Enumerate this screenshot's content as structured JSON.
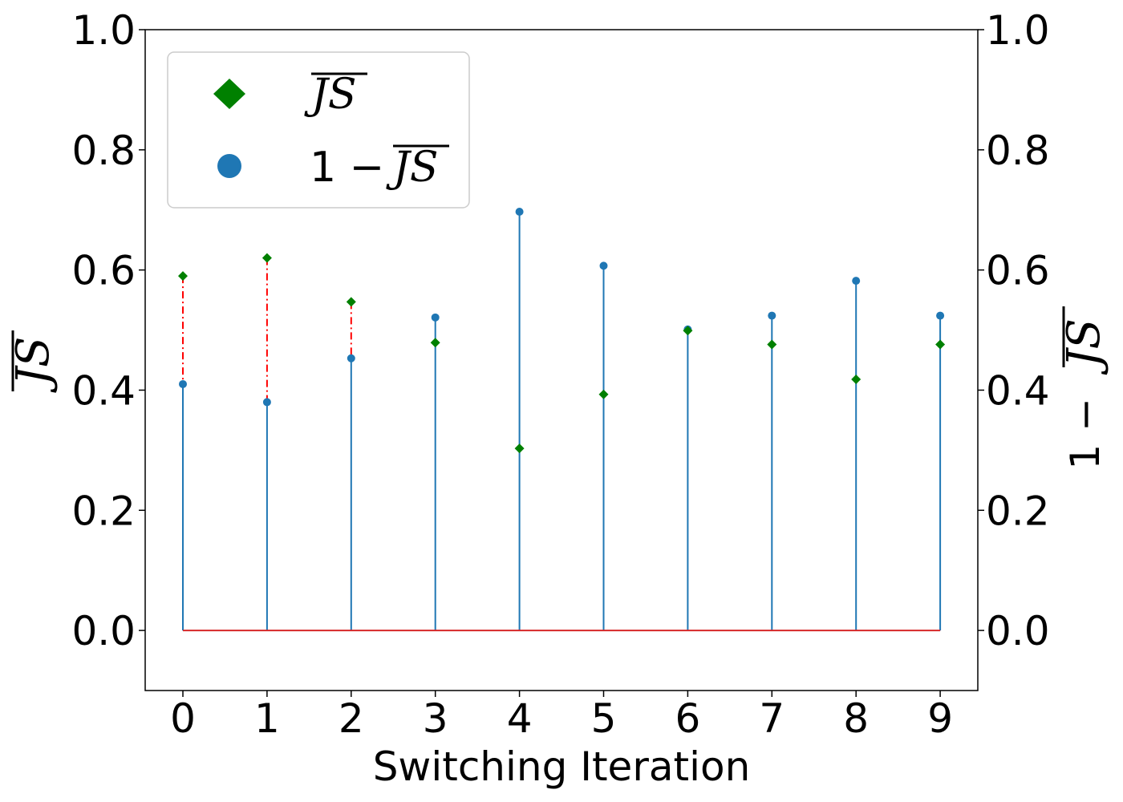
{
  "chart_data": {
    "type": "stem",
    "xlabel": "Switching Iteration",
    "ylabel_left": "JS",
    "ylabel_right_prefix": "1 −",
    "ylabel_right_symbol": "JS",
    "x": [
      0,
      1,
      2,
      3,
      4,
      5,
      6,
      7,
      8,
      9
    ],
    "xticks": [
      "0",
      "1",
      "2",
      "3",
      "4",
      "5",
      "6",
      "7",
      "8",
      "9"
    ],
    "ylim": [
      -0.1,
      1.0
    ],
    "yticks": [
      "0.0",
      "0.2",
      "0.4",
      "0.6",
      "0.8",
      "1.0"
    ],
    "series": [
      {
        "name": "JS",
        "marker": "diamond",
        "color": "#008000",
        "values": [
          0.59,
          0.62,
          0.547,
          0.479,
          0.303,
          0.393,
          0.499,
          0.476,
          0.418,
          0.476
        ]
      },
      {
        "name": "1 − JS",
        "marker": "circle",
        "color": "#1f77b4",
        "values": [
          0.41,
          0.38,
          0.453,
          0.521,
          0.697,
          0.607,
          0.501,
          0.524,
          0.582,
          0.524
        ]
      }
    ],
    "highlight_color": "#ff0000",
    "baseline_color": "#d62728",
    "legend": {
      "position": "upper-left",
      "entries": [
        {
          "label": "JS",
          "prefix": ""
        },
        {
          "label": "JS",
          "prefix": "1 − "
        }
      ]
    }
  }
}
